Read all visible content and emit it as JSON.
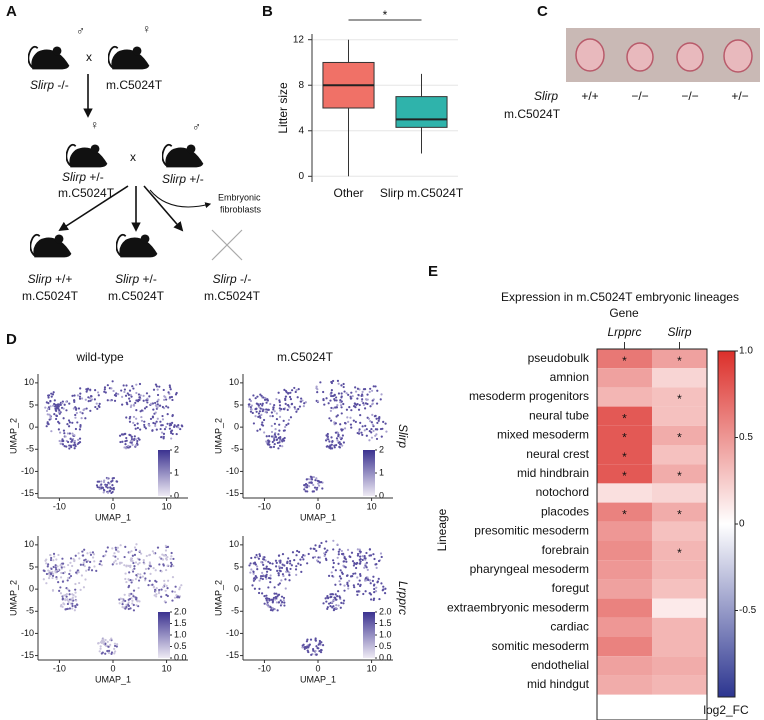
{
  "panels": {
    "a": "A",
    "b": "B",
    "c": "C",
    "d": "D",
    "e": "E"
  },
  "cross": {
    "male": "♂",
    "female": "♀",
    "times": "x",
    "parent1": {
      "gene": "Slirp",
      "genotype": "-/-"
    },
    "parent2": {
      "line": "m.C5024T"
    },
    "f1_female": {
      "gene": "Slirp",
      "genotype": "+/-",
      "line": "m.C5024T"
    },
    "f1_male": {
      "gene": "Slirp",
      "genotype": "+/-"
    },
    "side_product": [
      "Embryonic",
      "fibroblasts"
    ],
    "offspring": [
      {
        "gene": "Slirp",
        "genotype": "+/+",
        "line": "m.C5024T"
      },
      {
        "gene": "Slirp",
        "genotype": "+/-",
        "line": "m.C5024T"
      },
      {
        "gene": "Slirp",
        "genotype": "-/-",
        "line": "m.C5024T"
      }
    ]
  },
  "embryos": {
    "gene": "Slirp",
    "line": "m.C5024T",
    "genotypes": [
      "+/+",
      "−/−",
      "−/−",
      "+/−"
    ]
  },
  "umap": {
    "columns": [
      "wild-type",
      "m.C5024T"
    ],
    "rows": [
      {
        "gene": "Slirp",
        "scale_ticks": [
          0,
          1,
          2
        ]
      },
      {
        "gene": "Lrpprc",
        "scale_ticks": [
          {
            "value": 0,
            "label": "0.0"
          },
          {
            "value": 0.5,
            "label": "0.5"
          },
          {
            "value": 1,
            "label": "1.0"
          },
          {
            "value": 1.5,
            "label": "1.5"
          },
          {
            "value": 2,
            "label": "2.0"
          }
        ]
      }
    ],
    "xlabel": "UMAP_1",
    "ylabel": "UMAP_2",
    "xlim": [
      -14,
      14
    ],
    "xticks": [
      -10,
      0,
      10
    ],
    "ylim": [
      -16,
      12
    ],
    "yticks": [
      10,
      5,
      0,
      -5,
      -10,
      -15
    ]
  },
  "chart_data": [
    {
      "type": "box",
      "ylabel": "Litter size",
      "annotation": "*",
      "categories": [
        "Other",
        "Slirp m.C5024T"
      ],
      "series": [
        {
          "name": "Other",
          "color": "#f07167",
          "min": 0,
          "q1": 6,
          "median": 8,
          "q3": 10,
          "max": 12
        },
        {
          "name": "Slirp m.C5024T",
          "color": "#2fb3ab",
          "min": 2,
          "q1": 4.3,
          "median": 5,
          "q3": 7,
          "max": 9
        }
      ],
      "ylim": [
        -0.5,
        12.5
      ],
      "yticks": [
        0,
        4,
        8,
        12
      ],
      "grid": true
    },
    {
      "type": "heatmap",
      "title": "Expression in m.C5024T embryonic lineages",
      "xlabel": "Gene",
      "ylabel": "Lineage",
      "columns": [
        "Lrpprc",
        "Slirp"
      ],
      "rows": [
        "pseudobulk",
        "amnion",
        "mesoderm progenitors",
        "neural tube",
        "mixed mesoderm",
        "neural crest",
        "mid hindbrain",
        "notochord",
        "placodes",
        "presomitic mesoderm",
        "forebrain",
        "pharyngeal mesoderm",
        "foregut",
        "extraembryonic mesoderm",
        "cardiac",
        "somitic mesoderm",
        "endothelial",
        "mid hindgut"
      ],
      "values": [
        [
          0.65,
          0.45
        ],
        [
          0.45,
          0.2
        ],
        [
          0.35,
          0.3
        ],
        [
          0.8,
          0.3
        ],
        [
          0.8,
          0.4
        ],
        [
          0.8,
          0.3
        ],
        [
          0.8,
          0.4
        ],
        [
          0.15,
          0.2
        ],
        [
          0.6,
          0.4
        ],
        [
          0.5,
          0.3
        ],
        [
          0.55,
          0.35
        ],
        [
          0.5,
          0.35
        ],
        [
          0.45,
          0.3
        ],
        [
          0.6,
          0.1
        ],
        [
          0.5,
          0.35
        ],
        [
          0.6,
          0.35
        ],
        [
          0.45,
          0.4
        ],
        [
          0.4,
          0.35
        ]
      ],
      "stars": [
        [
          "*",
          "*"
        ],
        [
          null,
          null
        ],
        [
          null,
          "*"
        ],
        [
          "*",
          null
        ],
        [
          "*",
          "*"
        ],
        [
          "*",
          null
        ],
        [
          "*",
          "*"
        ],
        [
          null,
          null
        ],
        [
          "*",
          "*"
        ],
        [
          null,
          null
        ],
        [
          null,
          "*"
        ],
        [
          null,
          null
        ],
        [
          null,
          null
        ],
        [
          null,
          null
        ],
        [
          null,
          null
        ],
        [
          null,
          null
        ],
        [
          null,
          null
        ],
        [
          null,
          null
        ]
      ],
      "colorbar_label": "log2_FC",
      "clim": [
        -1,
        1
      ],
      "cticks": [
        -0.5,
        0,
        0.5,
        {
          "value": 1,
          "label": "1.0"
        }
      ],
      "colors": {
        "low": "#2c3590",
        "mid": "#ffffff",
        "high": "#dc2f2a"
      }
    }
  ]
}
